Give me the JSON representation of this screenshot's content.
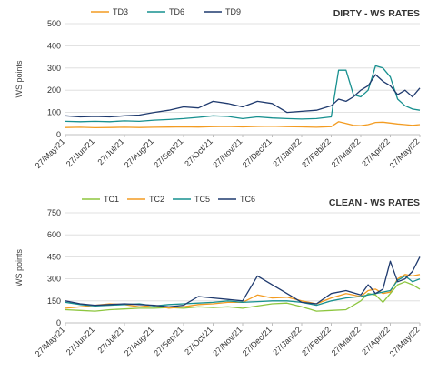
{
  "charts": [
    {
      "title": "DIRTY - WS RATES",
      "ylabel": "WS points",
      "y_ticks": [
        "0",
        "100",
        "200",
        "300",
        "400",
        "500"
      ],
      "x_ticks": [
        "27/May/21",
        "27/Jun/21",
        "27/Jul/21",
        "27/Aug/21",
        "27/Sep/21",
        "27/Oct/21",
        "27/Nov/21",
        "27/Dec/21",
        "27/Jan/22",
        "27/Feb/22",
        "27/Mar/22",
        "27/Apr/22",
        "27/May/22"
      ],
      "legend": [
        "TD3",
        "TD6",
        "TD9"
      ]
    },
    {
      "title": "CLEAN - WS RATES",
      "ylabel": "WS points",
      "y_ticks": [
        "0",
        "150",
        "300",
        "450",
        "600",
        "750"
      ],
      "x_ticks": [
        "27/May/21",
        "27/Jun/21",
        "27/Jul/21",
        "27/Aug/21",
        "27/Sep/21",
        "27/Oct/21",
        "27/Nov/21",
        "27/Dec/21",
        "27/Jan/22",
        "27/Feb/22",
        "27/Mar/22",
        "27/Apr/22",
        "27/May/22"
      ],
      "legend": [
        "TC1",
        "TC2",
        "TC5",
        "TC6"
      ]
    }
  ],
  "chart_data": [
    {
      "type": "line",
      "title": "DIRTY - WS RATES",
      "ylabel": "WS points",
      "ylim": [
        0,
        500
      ],
      "x": [
        0,
        0.5,
        1,
        1.5,
        2,
        2.5,
        3,
        3.5,
        4,
        4.5,
        5,
        5.5,
        6,
        6.5,
        7,
        7.5,
        8,
        8.5,
        9,
        9.25,
        9.5,
        9.75,
        10,
        10.25,
        10.5,
        10.75,
        11,
        11.25,
        11.5,
        11.75,
        12
      ],
      "series": [
        {
          "name": "TD3",
          "color": "#f39c22",
          "values": [
            32,
            33,
            31,
            32,
            33,
            32,
            33,
            34,
            35,
            34,
            36,
            37,
            35,
            37,
            38,
            36,
            35,
            33,
            36,
            58,
            50,
            42,
            40,
            45,
            55,
            56,
            52,
            48,
            45,
            42,
            45
          ]
        },
        {
          "name": "TD6",
          "color": "#17908f",
          "values": [
            60,
            58,
            60,
            58,
            62,
            60,
            65,
            68,
            72,
            78,
            85,
            82,
            72,
            80,
            75,
            72,
            70,
            72,
            80,
            290,
            290,
            180,
            170,
            200,
            310,
            300,
            260,
            160,
            130,
            115,
            110
          ]
        },
        {
          "name": "TD9",
          "color": "#1f3a6e",
          "values": [
            85,
            80,
            82,
            80,
            85,
            88,
            100,
            110,
            125,
            120,
            150,
            140,
            125,
            150,
            140,
            100,
            105,
            110,
            130,
            160,
            150,
            170,
            200,
            220,
            270,
            240,
            220,
            180,
            200,
            170,
            210
          ]
        }
      ]
    },
    {
      "type": "line",
      "title": "CLEAN - WS RATES",
      "ylabel": "WS points",
      "ylim": [
        0,
        750
      ],
      "x": [
        0,
        0.5,
        1,
        1.5,
        2,
        2.5,
        3,
        3.5,
        4,
        4.5,
        5,
        5.5,
        6,
        6.5,
        7,
        7.5,
        8,
        8.5,
        9,
        9.5,
        10,
        10.25,
        10.5,
        10.75,
        11,
        11.25,
        11.5,
        11.75,
        12
      ],
      "series": [
        {
          "name": "TC1",
          "color": "#8dc63f",
          "values": [
            90,
            85,
            80,
            90,
            95,
            100,
            100,
            105,
            100,
            110,
            105,
            110,
            100,
            115,
            130,
            135,
            110,
            80,
            85,
            90,
            150,
            200,
            190,
            140,
            200,
            260,
            280,
            260,
            230
          ]
        },
        {
          "name": "TC2",
          "color": "#f39c22",
          "values": [
            100,
            110,
            120,
            130,
            125,
            110,
            120,
            100,
            110,
            125,
            130,
            140,
            140,
            190,
            170,
            175,
            150,
            130,
            170,
            200,
            180,
            220,
            230,
            200,
            210,
            300,
            330,
            320,
            330
          ]
        },
        {
          "name": "TC5",
          "color": "#17908f",
          "values": [
            140,
            125,
            115,
            120,
            125,
            130,
            115,
            125,
            130,
            135,
            140,
            150,
            140,
            145,
            150,
            150,
            140,
            120,
            150,
            170,
            180,
            190,
            200,
            210,
            220,
            290,
            320,
            280,
            300
          ]
        },
        {
          "name": "TC6",
          "color": "#1f3a6e",
          "values": [
            150,
            130,
            120,
            125,
            130,
            125,
            120,
            110,
            120,
            180,
            170,
            160,
            150,
            320,
            260,
            200,
            140,
            130,
            200,
            220,
            190,
            260,
            200,
            230,
            420,
            280,
            300,
            350,
            450
          ]
        }
      ]
    }
  ]
}
